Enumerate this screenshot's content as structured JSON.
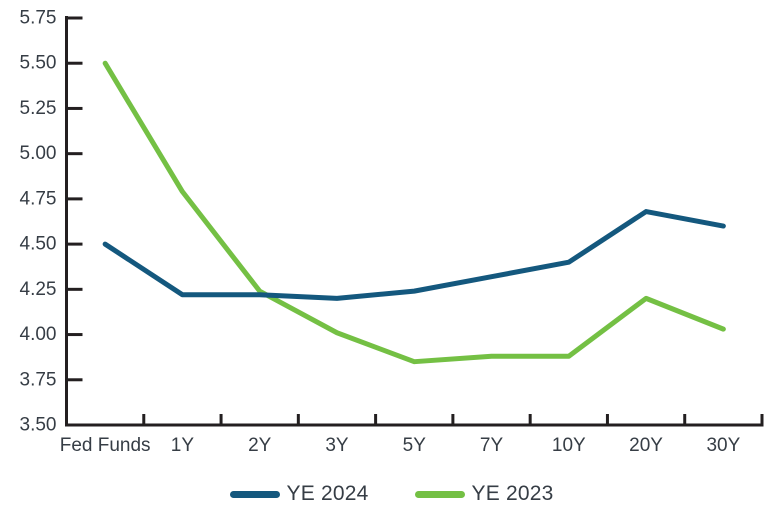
{
  "chart_data": {
    "type": "line",
    "title": "",
    "xlabel": "",
    "ylabel": "",
    "categories": [
      "Fed Funds",
      "1Y",
      "2Y",
      "3Y",
      "5Y",
      "7Y",
      "10Y",
      "20Y",
      "30Y"
    ],
    "series": [
      {
        "name": "YE 2024",
        "color": "#14587e",
        "values": [
          4.5,
          4.22,
          4.22,
          4.2,
          4.24,
          4.32,
          4.4,
          4.68,
          4.6
        ]
      },
      {
        "name": "YE 2023",
        "color": "#74c044",
        "values": [
          5.5,
          4.79,
          4.24,
          4.01,
          3.85,
          3.88,
          3.88,
          4.2,
          4.03
        ]
      }
    ],
    "ylim": [
      3.5,
      5.75
    ],
    "ytick_step": 0.25,
    "ytick_labels": [
      "5.75",
      "5.50",
      "5.25",
      "5.00",
      "4.75",
      "4.50",
      "4.25",
      "4.00",
      "3.75",
      "3.50"
    ],
    "grid": false,
    "legend_position": "bottom",
    "axis_color": "#231f20",
    "label_color": "#363d45"
  }
}
